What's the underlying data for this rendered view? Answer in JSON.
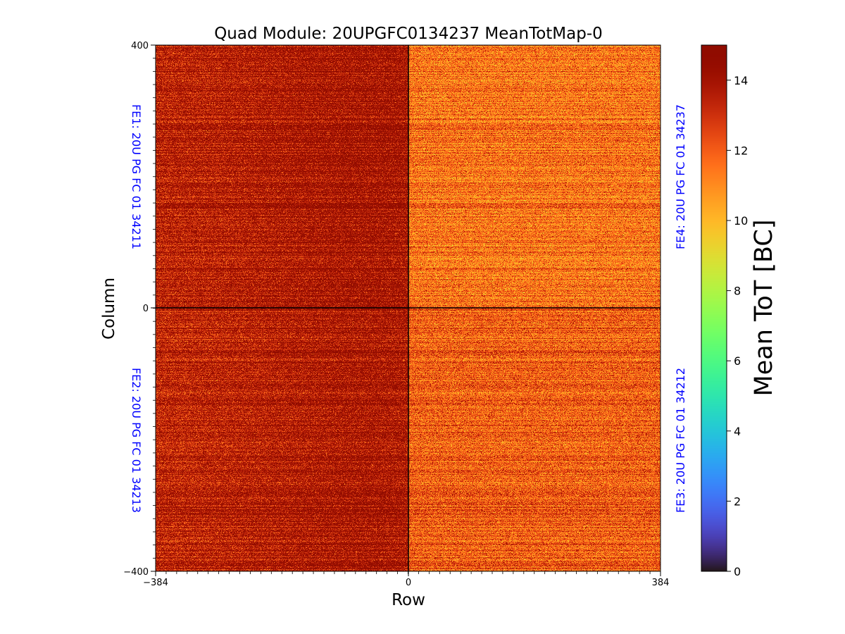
{
  "chart_data": {
    "type": "heatmap",
    "title": "Quad Module: 20UPGFC0134237 MeanTotMap-0",
    "xlabel": "Row",
    "ylabel": "Column",
    "xlim": [
      -384,
      384
    ],
    "ylim": [
      -400,
      400
    ],
    "x_ticks": [
      "−384",
      "0",
      "384"
    ],
    "y_ticks": [
      "400",
      "0",
      "−400"
    ],
    "quadrant_mean_tot": {
      "top_left": 13.5,
      "top_right": 11.5,
      "bottom_left": 13.4,
      "bottom_right": 12.0
    },
    "chip_labels": {
      "fe1": "FE1: 20U PG FC 01 34211",
      "fe2": "FE2: 20U PG FC 01 34213",
      "fe3": "FE3: 20U PG FC 01 34212",
      "fe4": "FE4: 20U PG FC 01 34237"
    },
    "label_color": "#0000ff",
    "colorbar": {
      "label": "Mean ToT [BC]",
      "min": 0,
      "max": 15,
      "colormap": "turbo",
      "ticks": [
        "0",
        "2",
        "4",
        "6",
        "8",
        "10",
        "12",
        "14"
      ]
    }
  }
}
